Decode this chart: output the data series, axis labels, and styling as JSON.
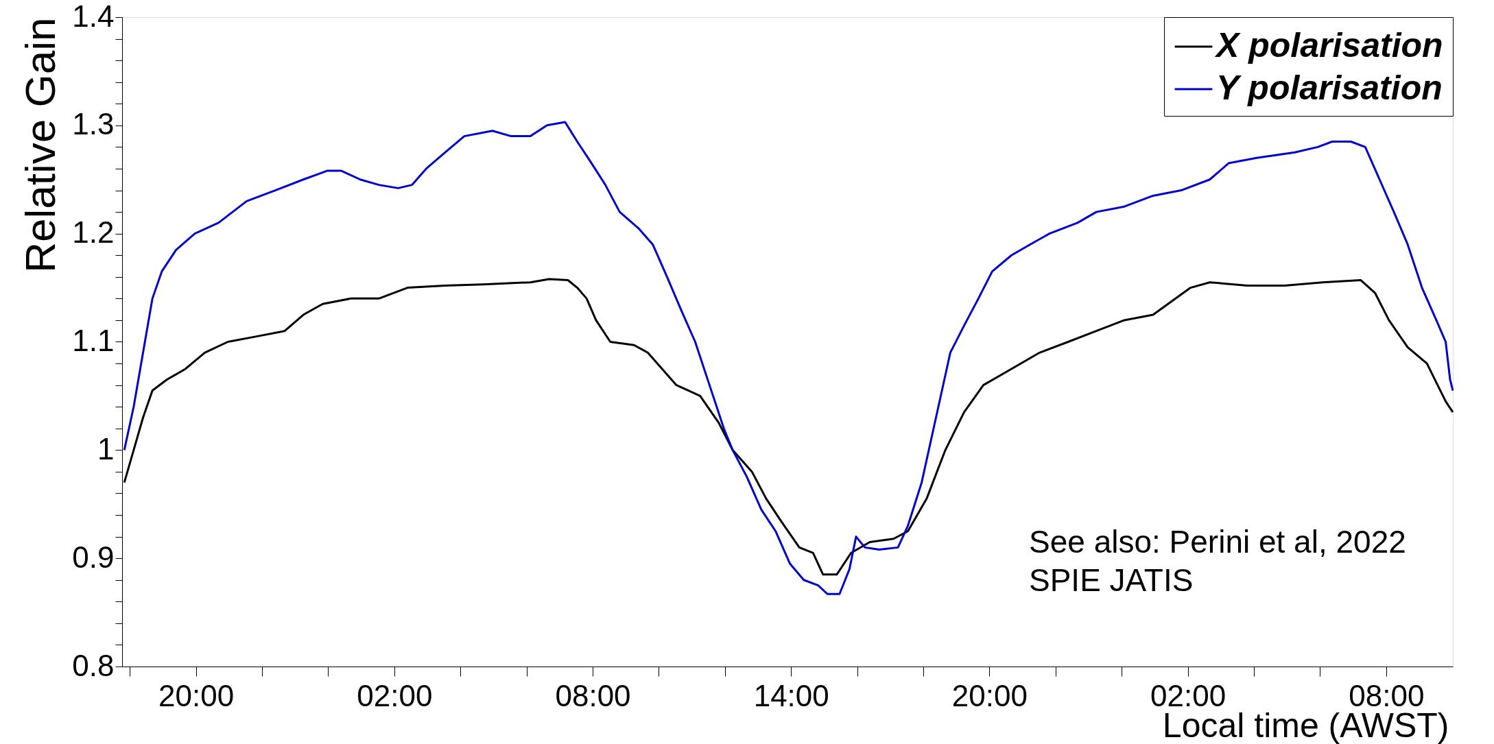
{
  "chart_data": {
    "type": "line",
    "xlabel": "Local time (AWST)",
    "ylabel": "Relative Gain",
    "legend": "top right",
    "line_style": "solid",
    "xlim": [
      "2022-01-01T17:46",
      "2022-01-03T10:01"
    ],
    "ylim": [
      0.8,
      1.4
    ],
    "xticks": [
      {
        "value": "2022-01-01T18:00",
        "label": null
      },
      {
        "value": "2022-01-01T20:00",
        "label": "20:00"
      },
      {
        "value": "2022-01-01T22:00",
        "label": null
      },
      {
        "value": "2022-01-02T00:00",
        "label": null
      },
      {
        "value": "2022-01-02T02:00",
        "label": "02:00"
      },
      {
        "value": "2022-01-02T04:00",
        "label": null
      },
      {
        "value": "2022-01-02T06:00",
        "label": null
      },
      {
        "value": "2022-01-02T08:00",
        "label": "08:00"
      },
      {
        "value": "2022-01-02T10:00",
        "label": null
      },
      {
        "value": "2022-01-02T12:00",
        "label": null
      },
      {
        "value": "2022-01-02T14:00",
        "label": "14:00"
      },
      {
        "value": "2022-01-02T16:00",
        "label": null
      },
      {
        "value": "2022-01-02T18:00",
        "label": null
      },
      {
        "value": "2022-01-02T20:00",
        "label": "20:00"
      },
      {
        "value": "2022-01-02T22:00",
        "label": null
      },
      {
        "value": "2022-01-03T00:00",
        "label": null
      },
      {
        "value": "2022-01-03T02:00",
        "label": "02:00"
      },
      {
        "value": "2022-01-03T04:00",
        "label": null
      },
      {
        "value": "2022-01-03T06:00",
        "label": null
      },
      {
        "value": "2022-01-03T08:00",
        "label": "08:00"
      }
    ],
    "yticks": [
      0.8,
      {
        "value": 0.82,
        "label": null
      },
      {
        "value": 0.84,
        "label": null
      },
      {
        "value": 0.86,
        "label": null
      },
      {
        "value": 0.88,
        "label": null
      },
      0.9,
      {
        "value": 0.92,
        "label": null
      },
      {
        "value": 0.94,
        "label": null
      },
      {
        "value": 0.96,
        "label": null
      },
      {
        "value": 0.98,
        "label": null
      },
      1,
      {
        "value": 1.02,
        "label": null
      },
      {
        "value": 1.04,
        "label": null
      },
      {
        "value": 1.06,
        "label": null
      },
      {
        "value": 1.08,
        "label": null
      },
      1.1,
      {
        "value": 1.12,
        "label": null
      },
      {
        "value": 1.14,
        "label": null
      },
      {
        "value": 1.16,
        "label": null
      },
      {
        "value": 1.18,
        "label": null
      },
      1.2,
      {
        "value": 1.22,
        "label": null
      },
      {
        "value": 1.24,
        "label": null
      },
      {
        "value": 1.26,
        "label": null
      },
      {
        "value": 1.28,
        "label": null
      },
      1.3,
      {
        "value": 1.32,
        "label": null
      },
      {
        "value": 1.34,
        "label": null
      },
      {
        "value": 1.36,
        "label": null
      },
      {
        "value": 1.38,
        "label": null
      },
      1.4
    ],
    "annotations": [
      "See also: Perini et al, 2022",
      "SPIE JATIS"
    ],
    "series": [
      {
        "name": "X polarisation",
        "color": "#000000",
        "x": [
          "2022-01-01T17:50",
          "2022-01-01T18:07",
          "2022-01-01T18:24",
          "2022-01-01T18:41",
          "2022-01-01T19:07",
          "2022-01-01T19:41",
          "2022-01-01T20:16",
          "2022-01-01T20:58",
          "2022-01-01T21:50",
          "2022-01-01T22:41",
          "2022-01-01T23:15",
          "2022-01-01T23:50",
          "2022-01-02T00:41",
          "2022-01-02T01:32",
          "2022-01-02T02:24",
          "2022-01-02T03:32",
          "2022-01-02T04:41",
          "2022-01-02T06:07",
          "2022-01-02T06:41",
          "2022-01-02T07:15",
          "2022-01-02T07:32",
          "2022-01-02T07:49",
          "2022-01-02T08:06",
          "2022-01-02T08:32",
          "2022-01-02T09:15",
          "2022-01-02T09:40",
          "2022-01-02T10:06",
          "2022-01-02T10:32",
          "2022-01-02T11:15",
          "2022-01-02T11:49",
          "2022-01-02T12:14",
          "2022-01-02T12:49",
          "2022-01-02T13:15",
          "2022-01-02T13:41",
          "2022-01-02T14:15",
          "2022-01-02T14:40",
          "2022-01-02T14:58",
          "2022-01-02T15:23",
          "2022-01-02T15:49",
          "2022-01-02T16:23",
          "2022-01-02T17:06",
          "2022-01-02T17:32",
          "2022-01-02T18:06",
          "2022-01-02T18:40",
          "2022-01-02T19:14",
          "2022-01-02T19:49",
          "2022-01-02T20:40",
          "2022-01-02T21:31",
          "2022-01-02T22:23",
          "2022-01-02T23:14",
          "2022-01-03T00:05",
          "2022-01-03T00:57",
          "2022-01-03T02:05",
          "2022-01-03T02:40",
          "2022-01-03T03:48",
          "2022-01-03T04:56",
          "2022-01-03T06:05",
          "2022-01-03T07:14",
          "2022-01-03T07:40",
          "2022-01-03T08:05",
          "2022-01-03T08:39",
          "2022-01-03T09:14",
          "2022-01-03T09:48",
          "2022-01-03T10:01"
        ],
        "values": [
          0.97,
          1.0,
          1.03,
          1.055,
          1.065,
          1.075,
          1.09,
          1.1,
          1.105,
          1.11,
          1.125,
          1.135,
          1.14,
          1.14,
          1.15,
          1.152,
          1.153,
          1.155,
          1.158,
          1.157,
          1.15,
          1.14,
          1.12,
          1.1,
          1.097,
          1.09,
          1.075,
          1.06,
          1.05,
          1.025,
          1.0,
          0.98,
          0.955,
          0.935,
          0.91,
          0.905,
          0.885,
          0.885,
          0.905,
          0.915,
          0.918,
          0.925,
          0.955,
          1.0,
          1.035,
          1.06,
          1.075,
          1.09,
          1.1,
          1.11,
          1.12,
          1.125,
          1.15,
          1.155,
          1.152,
          1.152,
          1.155,
          1.157,
          1.145,
          1.12,
          1.095,
          1.08,
          1.045,
          1.035
        ]
      },
      {
        "name": "Y polarisation",
        "color": "#0000cc",
        "x": [
          "2022-01-01T17:50",
          "2022-01-01T18:07",
          "2022-01-01T18:24",
          "2022-01-01T18:41",
          "2022-01-01T18:58",
          "2022-01-01T19:24",
          "2022-01-01T19:58",
          "2022-01-01T20:41",
          "2022-01-01T21:32",
          "2022-01-01T22:24",
          "2022-01-01T23:15",
          "2022-01-01T23:58",
          "2022-01-02T00:24",
          "2022-01-02T00:58",
          "2022-01-02T01:32",
          "2022-01-02T02:07",
          "2022-01-02T02:32",
          "2022-01-02T02:58",
          "2022-01-02T03:32",
          "2022-01-02T04:07",
          "2022-01-02T04:58",
          "2022-01-02T05:32",
          "2022-01-02T06:07",
          "2022-01-02T06:37",
          "2022-01-02T07:10",
          "2022-01-02T07:32",
          "2022-01-02T07:58",
          "2022-01-02T08:23",
          "2022-01-02T08:49",
          "2022-01-02T09:23",
          "2022-01-02T09:49",
          "2022-01-02T10:15",
          "2022-01-02T10:40",
          "2022-01-02T11:06",
          "2022-01-02T11:32",
          "2022-01-02T11:58",
          "2022-01-02T12:14",
          "2022-01-02T12:40",
          "2022-01-02T13:06",
          "2022-01-02T13:32",
          "2022-01-02T13:58",
          "2022-01-02T14:23",
          "2022-01-02T14:49",
          "2022-01-02T15:06",
          "2022-01-02T15:28",
          "2022-01-02T15:46",
          "2022-01-02T15:58",
          "2022-01-02T16:14",
          "2022-01-02T16:40",
          "2022-01-02T17:14",
          "2022-01-02T17:32",
          "2022-01-02T17:57",
          "2022-01-02T18:23",
          "2022-01-02T18:49",
          "2022-01-02T19:14",
          "2022-01-02T19:40",
          "2022-01-02T20:05",
          "2022-01-02T20:40",
          "2022-01-02T21:14",
          "2022-01-02T21:49",
          "2022-01-02T22:40",
          "2022-01-02T23:14",
          "2022-01-03T00:05",
          "2022-01-03T00:57",
          "2022-01-03T01:48",
          "2022-01-03T02:40",
          "2022-01-03T03:14",
          "2022-01-03T04:05",
          "2022-01-03T05:14",
          "2022-01-03T05:56",
          "2022-01-03T06:22",
          "2022-01-03T06:56",
          "2022-01-03T07:22",
          "2022-01-03T07:48",
          "2022-01-03T08:14",
          "2022-01-03T08:39",
          "2022-01-03T09:05",
          "2022-01-03T09:31",
          "2022-01-03T09:48",
          "2022-01-03T09:56",
          "2022-01-03T10:01"
        ],
        "values": [
          1.0,
          1.04,
          1.09,
          1.14,
          1.165,
          1.185,
          1.2,
          1.21,
          1.23,
          1.24,
          1.25,
          1.258,
          1.258,
          1.25,
          1.245,
          1.242,
          1.245,
          1.26,
          1.275,
          1.29,
          1.295,
          1.29,
          1.29,
          1.3,
          1.303,
          1.285,
          1.265,
          1.245,
          1.22,
          1.205,
          1.19,
          1.16,
          1.13,
          1.1,
          1.06,
          1.02,
          1.0,
          0.975,
          0.945,
          0.925,
          0.895,
          0.88,
          0.875,
          0.867,
          0.867,
          0.89,
          0.92,
          0.91,
          0.908,
          0.91,
          0.93,
          0.97,
          1.03,
          1.09,
          1.115,
          1.14,
          1.165,
          1.18,
          1.19,
          1.2,
          1.21,
          1.22,
          1.225,
          1.235,
          1.24,
          1.25,
          1.265,
          1.27,
          1.275,
          1.28,
          1.285,
          1.285,
          1.28,
          1.25,
          1.22,
          1.19,
          1.15,
          1.12,
          1.1,
          1.065,
          1.055
        ]
      }
    ]
  }
}
